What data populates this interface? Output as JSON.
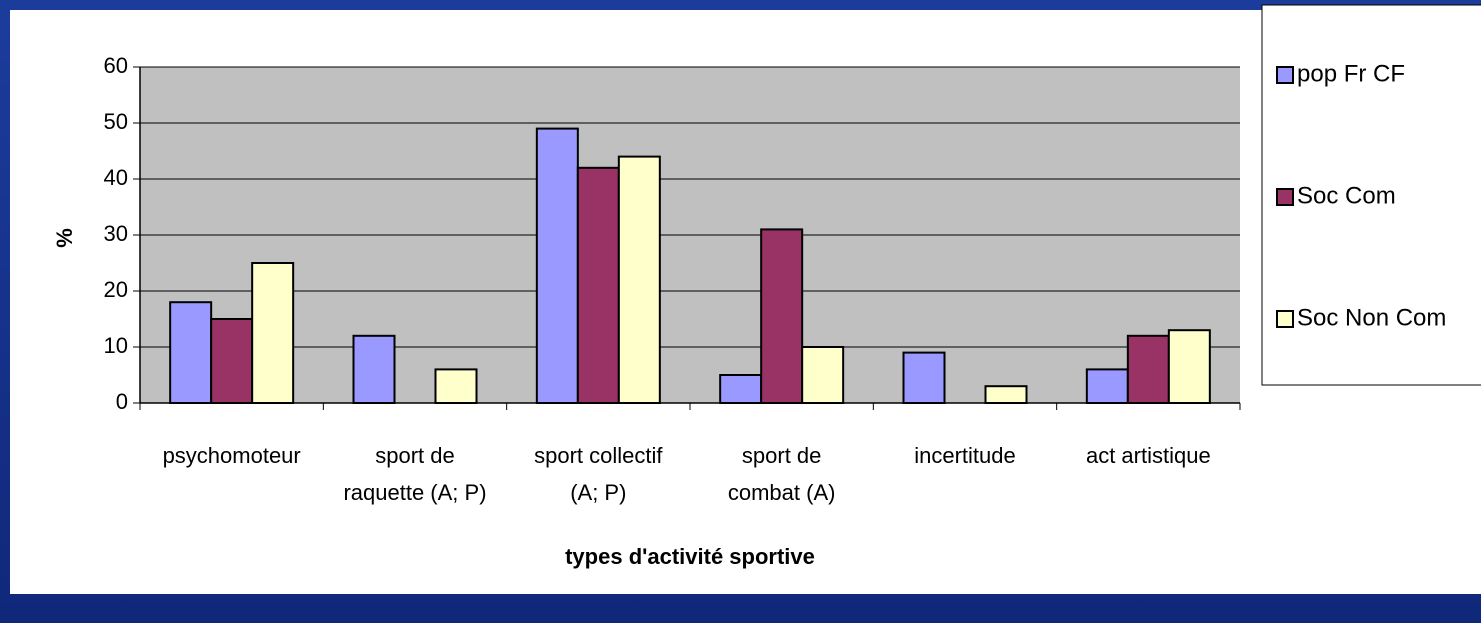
{
  "chart_data": {
    "type": "bar",
    "categories": [
      "psychomoteur",
      "sport de\nraquette (A; P)",
      "sport collectif\n(A; P)",
      "sport de\ncombat (A)",
      "incertitude",
      "act artistique"
    ],
    "series": [
      {
        "name": "pop Fr CF",
        "color": "#9999ff",
        "values": [
          18,
          12,
          49,
          5,
          9,
          6
        ]
      },
      {
        "name": "Soc Com",
        "color": "#993366",
        "values": [
          15,
          0,
          42,
          31,
          0,
          12
        ]
      },
      {
        "name": "Soc Non Com",
        "color": "#ffffcc",
        "values": [
          25,
          6,
          44,
          10,
          3,
          13
        ]
      }
    ],
    "ylabel": "%",
    "xlabel": "types d'activité sportive",
    "ylim": [
      0,
      60
    ],
    "yticks": [
      0,
      10,
      20,
      30,
      40,
      50,
      60
    ],
    "grid": true,
    "legend": "right"
  }
}
